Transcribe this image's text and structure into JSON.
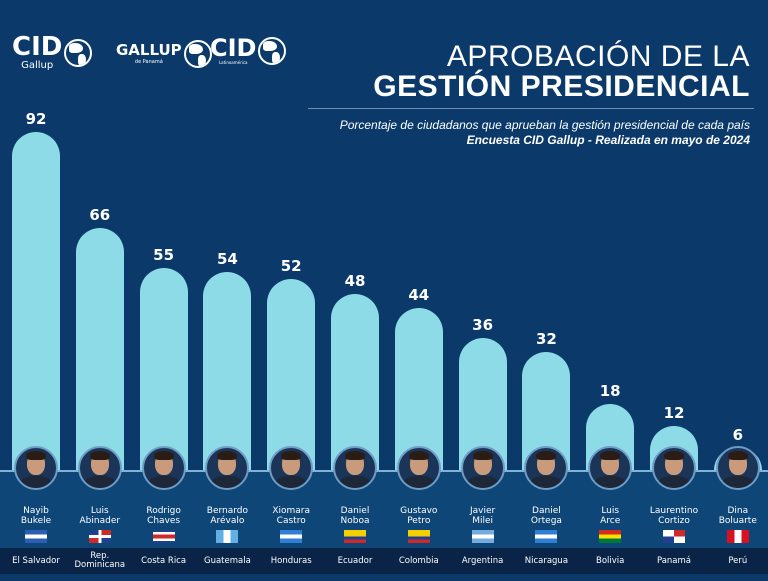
{
  "logos": [
    {
      "main": "CID",
      "sub": "Gallup"
    },
    {
      "main": "GALLUP",
      "sub": "de Panamá"
    },
    {
      "main": "CID",
      "sub": "Latinoamérica"
    }
  ],
  "colors": {
    "background": "#0b3a6a",
    "bar": "#8edbe8",
    "country_strip": "#0a2447",
    "text": "#ffffff"
  },
  "chart_data": {
    "type": "bar",
    "title": "APROBACIÓN DE LA GESTIÓN PRESIDENCIAL",
    "title_line1": "APROBACIÓN DE LA",
    "title_line2": "GESTIÓN PRESIDENCIAL",
    "subtitle": "Porcentaje de ciudadanos que aprueban la gestión presidencial de cada país",
    "source": "Encuesta CID Gallup - Realizada en mayo de 2024",
    "xlabel": "",
    "ylabel": "",
    "ylim": [
      0,
      100
    ],
    "grid": false,
    "categories": [
      "El Salvador",
      "Rep. Dominicana",
      "Costa Rica",
      "Guatemala",
      "Honduras",
      "Ecuador",
      "Colombia",
      "Argentina",
      "Nicaragua",
      "Bolivia",
      "Panamá",
      "Perú"
    ],
    "values": [
      92,
      66,
      55,
      54,
      52,
      48,
      44,
      36,
      32,
      18,
      12,
      6
    ],
    "items": [
      {
        "name_line1": "Nayib",
        "name_line2": "Bukele",
        "country_line1": "El Salvador",
        "country_line2": "",
        "value": 92,
        "flag": "el-salvador"
      },
      {
        "name_line1": "Luis",
        "name_line2": "Abinader",
        "country_line1": "Rep.",
        "country_line2": "Dominicana",
        "value": 66,
        "flag": "dominican-republic"
      },
      {
        "name_line1": "Rodrigo",
        "name_line2": "Chaves",
        "country_line1": "Costa Rica",
        "country_line2": "",
        "value": 55,
        "flag": "costa-rica"
      },
      {
        "name_line1": "Bernardo",
        "name_line2": "Arévalo",
        "country_line1": "Guatemala",
        "country_line2": "",
        "value": 54,
        "flag": "guatemala"
      },
      {
        "name_line1": "Xiomara",
        "name_line2": "Castro",
        "country_line1": "Honduras",
        "country_line2": "",
        "value": 52,
        "flag": "honduras"
      },
      {
        "name_line1": "Daniel",
        "name_line2": "Noboa",
        "country_line1": "Ecuador",
        "country_line2": "",
        "value": 48,
        "flag": "ecuador"
      },
      {
        "name_line1": "Gustavo",
        "name_line2": "Petro",
        "country_line1": "Colombia",
        "country_line2": "",
        "value": 44,
        "flag": "colombia"
      },
      {
        "name_line1": "Javier",
        "name_line2": "Milei",
        "country_line1": "Argentina",
        "country_line2": "",
        "value": 36,
        "flag": "argentina"
      },
      {
        "name_line1": "Daniel",
        "name_line2": "Ortega",
        "country_line1": "Nicaragua",
        "country_line2": "",
        "value": 32,
        "flag": "nicaragua"
      },
      {
        "name_line1": "Luis",
        "name_line2": "Arce",
        "country_line1": "Bolivia",
        "country_line2": "",
        "value": 18,
        "flag": "bolivia"
      },
      {
        "name_line1": "Laurentino",
        "name_line2": "Cortizo",
        "country_line1": "Panamá",
        "country_line2": "",
        "value": 12,
        "flag": "panama"
      },
      {
        "name_line1": "Dina",
        "name_line2": "Boluarte",
        "country_line1": "Perú",
        "country_line2": "",
        "value": 6,
        "flag": "peru"
      }
    ]
  }
}
